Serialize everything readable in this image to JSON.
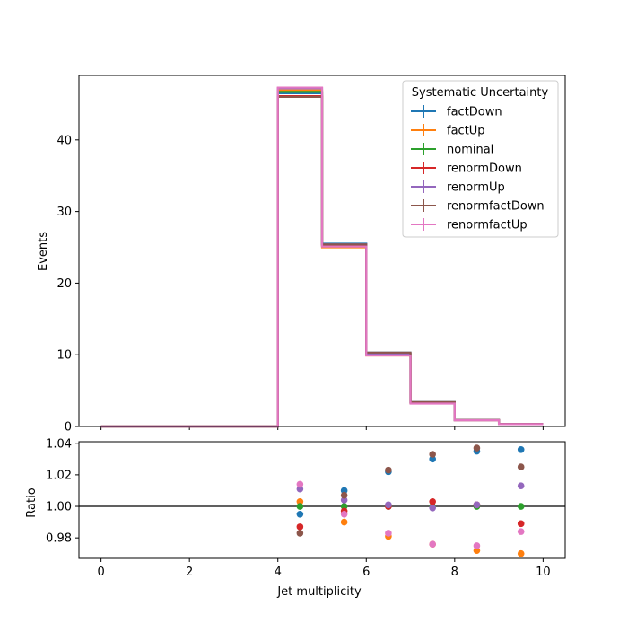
{
  "chart_data": [
    {
      "type": "line",
      "subtype": "step-histogram",
      "ylabel": "Events",
      "xlim": [
        -0.5,
        10.5
      ],
      "ylim": [
        0,
        49
      ],
      "y_ticks": [
        0,
        10,
        20,
        30,
        40
      ],
      "y_tick_labels": [
        "0",
        "10",
        "20",
        "30",
        "40"
      ],
      "bin_edges": [
        0,
        1,
        2,
        3,
        4,
        5,
        6,
        7,
        8,
        9,
        10
      ],
      "legend": {
        "title": "Systematic Uncertainty",
        "position": "upper right"
      },
      "series": [
        {
          "name": "factDown",
          "color": "#1f77b4",
          "values": [
            0,
            0,
            0,
            0,
            46.5,
            25.5,
            10.3,
            3.4,
            0.9,
            0.35
          ]
        },
        {
          "name": "factUp",
          "color": "#ff7f0e",
          "values": [
            0,
            0,
            0,
            0,
            46.9,
            25.0,
            9.9,
            3.3,
            0.87,
            0.33
          ]
        },
        {
          "name": "nominal",
          "color": "#2ca02c",
          "values": [
            0,
            0,
            0,
            0,
            46.7,
            25.3,
            10.1,
            3.3,
            0.88,
            0.34
          ]
        },
        {
          "name": "renormDown",
          "color": "#d62728",
          "values": [
            0,
            0,
            0,
            0,
            46.1,
            25.2,
            10.1,
            3.3,
            0.88,
            0.34
          ]
        },
        {
          "name": "renormUp",
          "color": "#9467bd",
          "values": [
            0,
            0,
            0,
            0,
            47.2,
            25.4,
            10.1,
            3.3,
            0.88,
            0.34
          ]
        },
        {
          "name": "renormfactDown",
          "color": "#8c564b",
          "values": [
            0,
            0,
            0,
            0,
            46.0,
            25.4,
            10.3,
            3.4,
            0.9,
            0.35
          ]
        },
        {
          "name": "renormfactUp",
          "color": "#e377c2",
          "values": [
            0,
            0,
            0,
            0,
            47.3,
            25.1,
            9.9,
            3.2,
            0.86,
            0.33
          ]
        }
      ]
    },
    {
      "type": "scatter",
      "xlabel": "Jet multiplicity",
      "ylabel": "Ratio",
      "xlim": [
        -0.5,
        10.5
      ],
      "ylim": [
        0.967,
        1.041
      ],
      "x_ticks": [
        0,
        2,
        4,
        6,
        8,
        10
      ],
      "x_tick_labels": [
        "0",
        "2",
        "4",
        "6",
        "8",
        "10"
      ],
      "y_ticks": [
        0.98,
        1.0,
        1.02,
        1.04
      ],
      "y_tick_labels": [
        "0.98",
        "1.00",
        "1.02",
        "1.04"
      ],
      "reference_line": 1.0,
      "x": [
        4.5,
        5.5,
        6.5,
        7.5,
        8.5,
        9.5
      ],
      "series": [
        {
          "name": "factDown",
          "color": "#1f77b4",
          "values": [
            0.995,
            1.01,
            1.022,
            1.03,
            1.035,
            1.036
          ]
        },
        {
          "name": "factUp",
          "color": "#ff7f0e",
          "values": [
            1.003,
            0.99,
            0.981,
            0.976,
            0.972,
            0.97
          ]
        },
        {
          "name": "nominal",
          "color": "#2ca02c",
          "values": [
            1.0,
            1.0,
            1.0,
            1.0,
            1.0,
            1.0
          ]
        },
        {
          "name": "renormDown",
          "color": "#d62728",
          "values": [
            0.987,
            0.997,
            1.0,
            1.003,
            1.001,
            0.989
          ]
        },
        {
          "name": "renormUp",
          "color": "#9467bd",
          "values": [
            1.011,
            1.004,
            1.001,
            0.999,
            1.001,
            1.013
          ]
        },
        {
          "name": "renormfactDown",
          "color": "#8c564b",
          "values": [
            0.983,
            1.007,
            1.023,
            1.033,
            1.037,
            1.025
          ]
        },
        {
          "name": "renormfactUp",
          "color": "#e377c2",
          "values": [
            1.014,
            0.995,
            0.983,
            0.976,
            0.975,
            0.984
          ]
        }
      ]
    }
  ]
}
